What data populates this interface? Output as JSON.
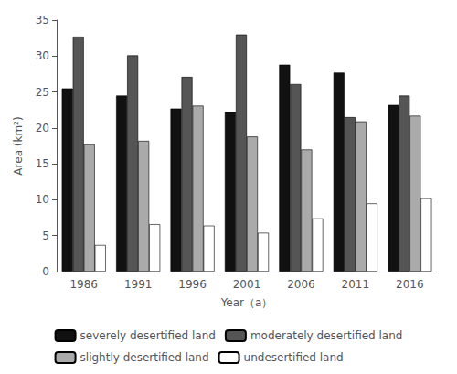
{
  "chart_data": {
    "type": "bar",
    "categories": [
      "1986",
      "1991",
      "1996",
      "2001",
      "2006",
      "2011",
      "2016"
    ],
    "series": [
      {
        "name": "severely desertified land",
        "color": "#111111",
        "values": [
          25.5,
          24.5,
          22.7,
          22.2,
          28.8,
          27.7,
          23.2
        ]
      },
      {
        "name": "moderately desertified land",
        "color": "#555555",
        "values": [
          32.7,
          30.1,
          27.1,
          33.0,
          26.1,
          21.5,
          24.5
        ]
      },
      {
        "name": "slightly desertified land",
        "color": "#aaaaaa",
        "values": [
          17.7,
          18.2,
          23.1,
          18.8,
          17.0,
          20.9,
          21.7
        ]
      },
      {
        "name": "undesertified land",
        "color": "#ffffff",
        "values": [
          3.7,
          6.6,
          6.4,
          5.4,
          7.4,
          9.5,
          10.2
        ]
      }
    ],
    "xlabel": "Year（a）",
    "ylabel": "Area (km²)",
    "ylim": [
      0,
      35
    ],
    "yticks": [
      0,
      5,
      10,
      15,
      20,
      25,
      30,
      35
    ],
    "grid": false,
    "legend": "bottom"
  }
}
